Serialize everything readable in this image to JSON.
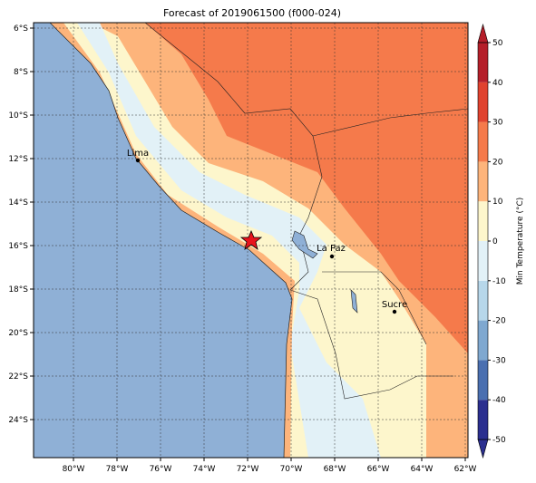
{
  "title": "Forecast of 2019061500 (f000-024)",
  "map": {
    "lon_labels": [
      "80°W",
      "78°W",
      "76°W",
      "74°W",
      "72°W",
      "70°W",
      "68°W",
      "66°W",
      "64°W",
      "62°W"
    ],
    "lat_labels": [
      "6°S",
      "8°S",
      "10°S",
      "12°S",
      "14°S",
      "16°S",
      "18°S",
      "20°S",
      "22°S",
      "24°S"
    ],
    "cities": [
      "Lima",
      "La Paz",
      "Sucre"
    ]
  },
  "colorbar": {
    "label": "Min Temperature (°C)",
    "ticks": [
      -50,
      -40,
      -30,
      -20,
      -10,
      0,
      10,
      20,
      30,
      40,
      50
    ],
    "colors": [
      "#2b2f8f",
      "#4a6fb0",
      "#7fa8d0",
      "#b7d7ea",
      "#e2f1f7",
      "#fdf6cc",
      "#fdb47b",
      "#f57a4b",
      "#e0432f",
      "#b51f2a"
    ]
  }
}
